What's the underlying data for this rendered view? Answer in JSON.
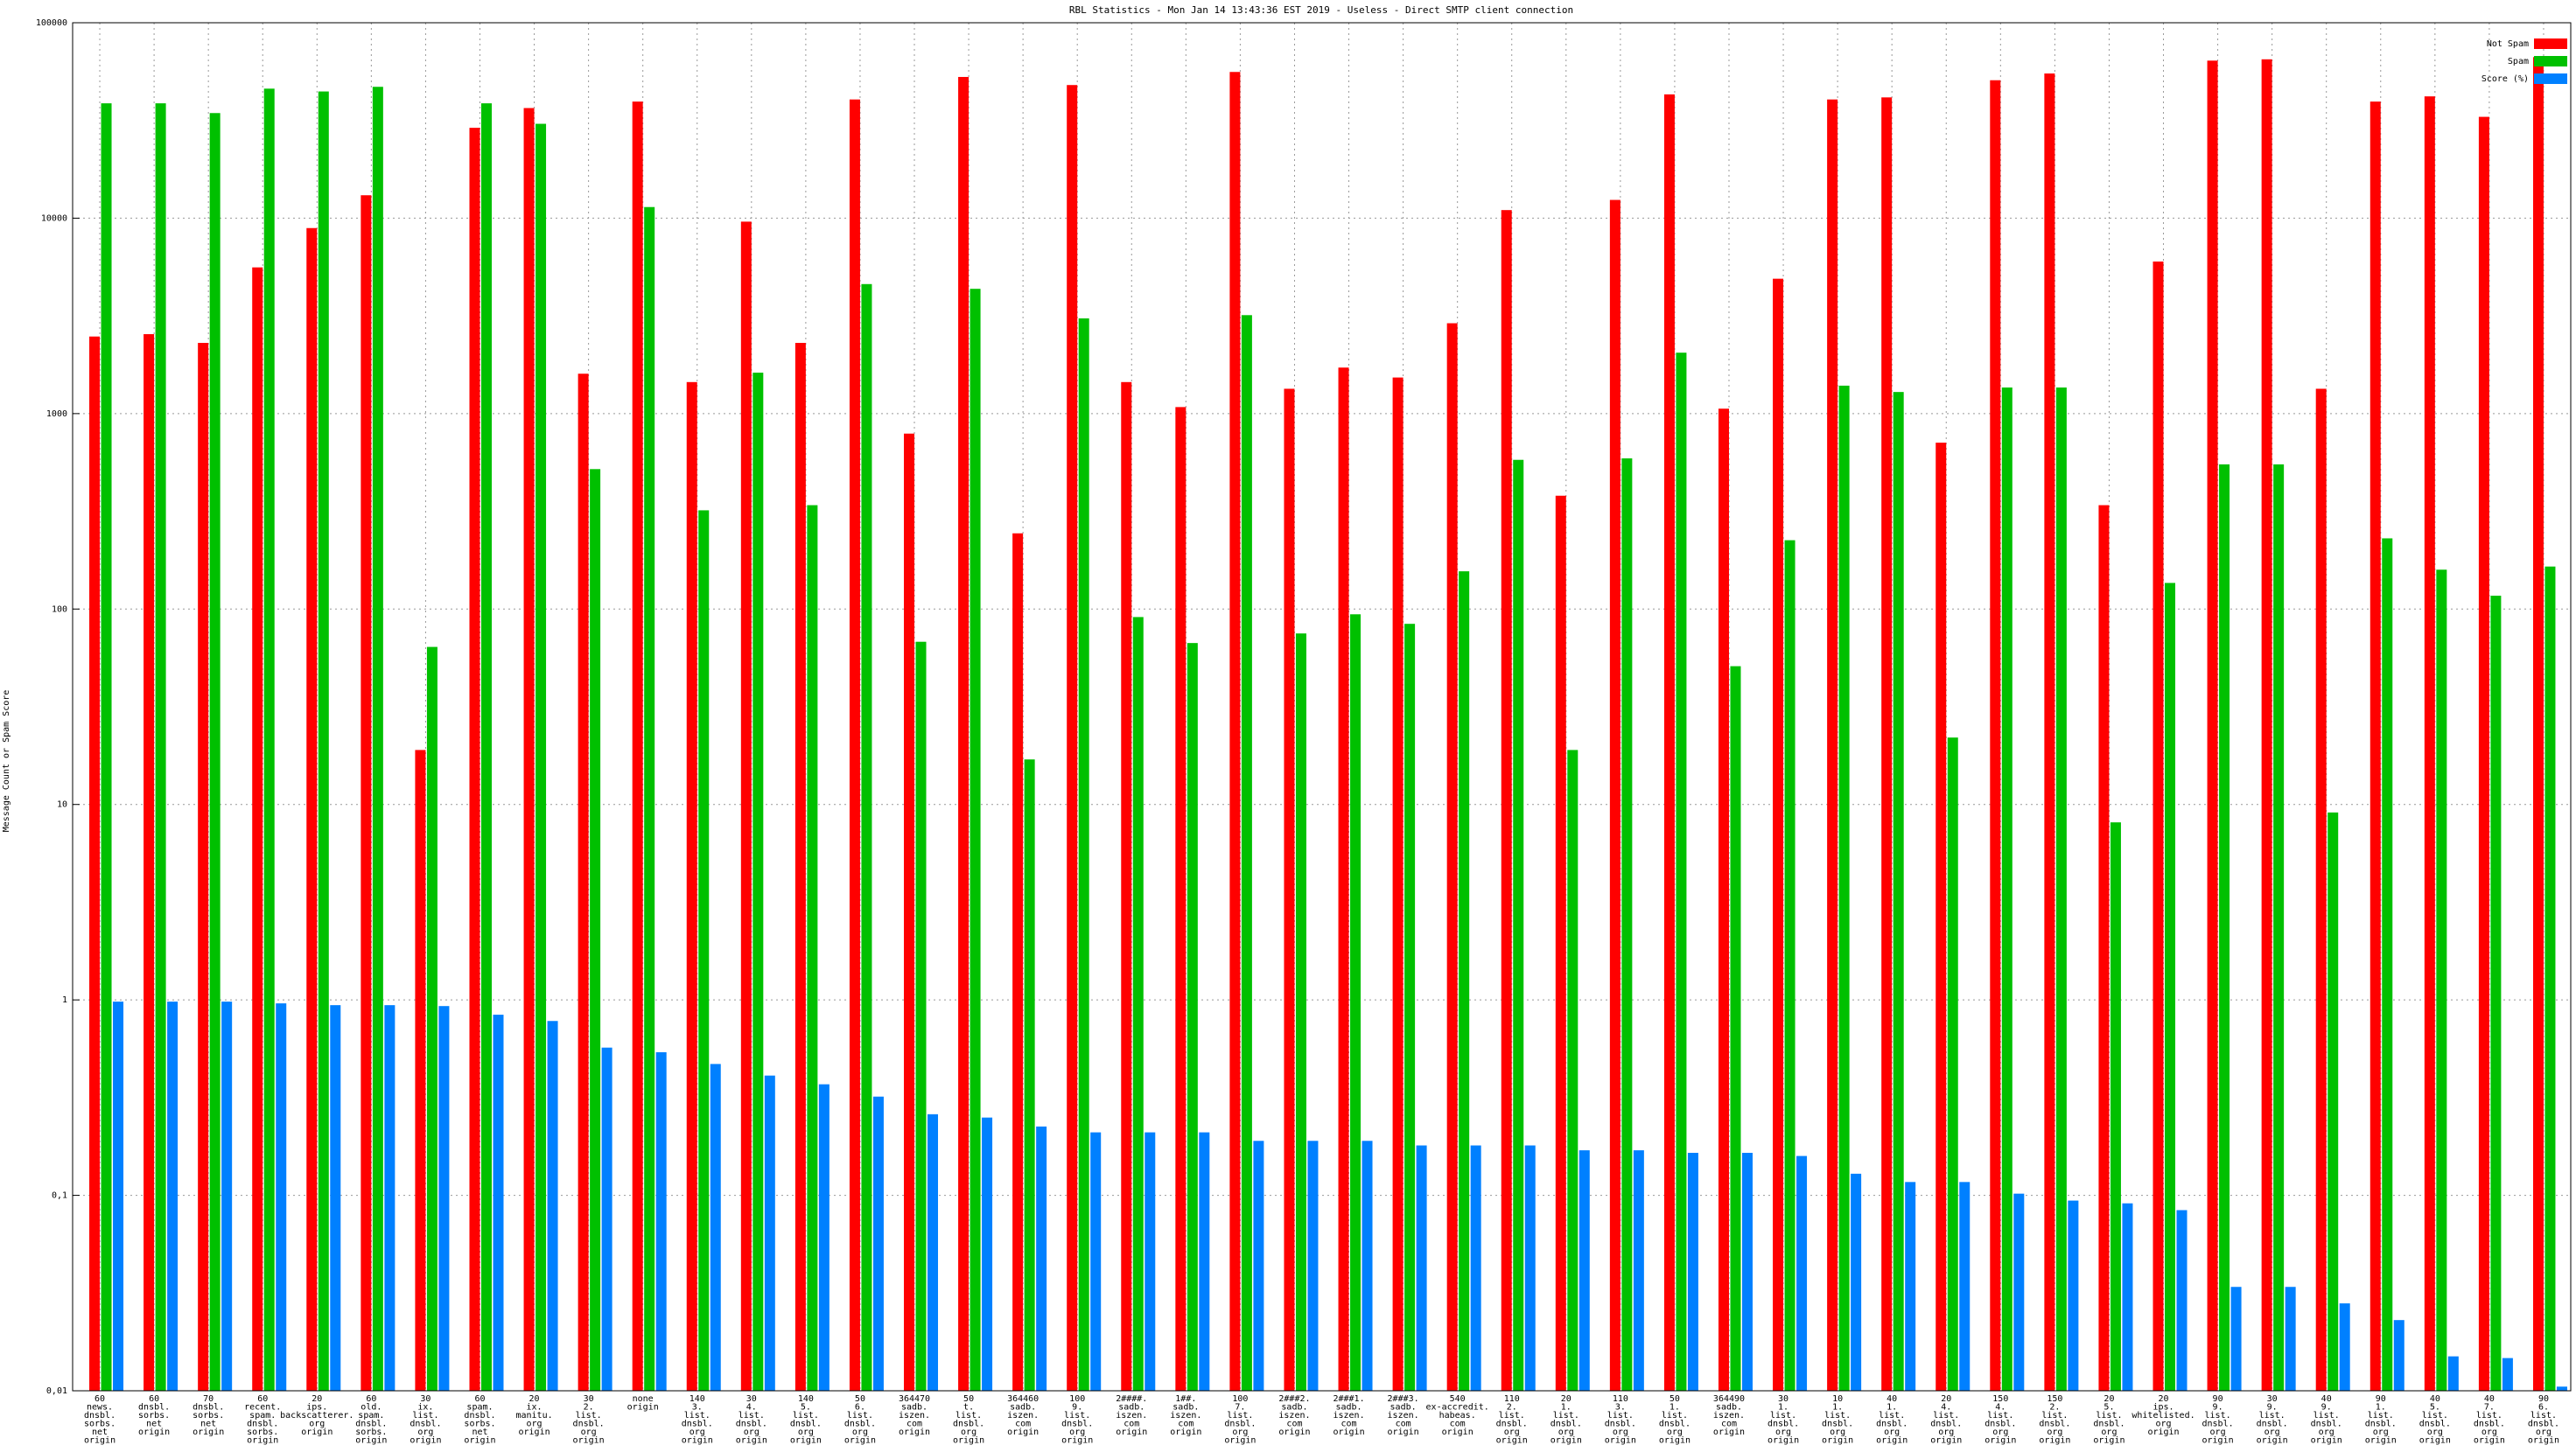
{
  "chart_data": {
    "type": "bar",
    "title": "RBL Statistics - Mon Jan 14 13:43:36 EST 2019 - Useless - Direct SMTP client connection",
    "y_label": "Message Count or Spam Score",
    "log_scale": true,
    "grid": true,
    "legend_position": "top-right",
    "ylim": [
      0.01,
      100000
    ],
    "yticks": [
      {
        "value": 0.01,
        "label": "0,01"
      },
      {
        "value": 0.1,
        "label": "0,1"
      },
      1,
      10,
      100,
      1000,
      10000,
      100000
    ],
    "categories": [
      [
        "60",
        "news.",
        "dnsbl.",
        "sorbs.",
        "net",
        "origin"
      ],
      [
        "60",
        "dnsbl.",
        "sorbs.",
        "net",
        "origin"
      ],
      [
        "70",
        "dnsbl.",
        "sorbs.",
        "net",
        "origin"
      ],
      [
        "60",
        "recent.",
        "spam.",
        "dnsbl.",
        "sorbs.",
        "origin"
      ],
      [
        "20",
        "ips.",
        "backscatterer.",
        "org",
        "origin"
      ],
      [
        "60",
        "old.",
        "spam.",
        "dnsbl.",
        "sorbs.",
        "origin"
      ],
      [
        "30",
        "ix.",
        "list.",
        "dnsbl.",
        "org",
        "origin"
      ],
      [
        "60",
        "spam.",
        "dnsbl.",
        "sorbs.",
        "net",
        "origin"
      ],
      [
        "20",
        "ix.",
        "manitu.",
        "org",
        "origin"
      ],
      [
        "30",
        "2.",
        "list.",
        "dnsbl.",
        "org",
        "origin"
      ],
      [
        "none",
        "origin"
      ],
      [
        "140",
        "3.",
        "list.",
        "dnsbl.",
        "org",
        "origin"
      ],
      [
        "30",
        "4.",
        "list.",
        "dnsbl.",
        "org",
        "origin"
      ],
      [
        "140",
        "5.",
        "list.",
        "dnsbl.",
        "org",
        "origin"
      ],
      [
        "50",
        "6.",
        "list.",
        "dnsbl.",
        "org",
        "origin"
      ],
      [
        "364470",
        "sadb.",
        "iszen.",
        "com",
        "origin"
      ],
      [
        "50",
        "t.",
        "list.",
        "dnsbl.",
        "org",
        "origin"
      ],
      [
        "364460",
        "sadb.",
        "iszen.",
        "com",
        "origin"
      ],
      [
        "100",
        "9.",
        "list.",
        "dnsbl.",
        "org",
        "origin"
      ],
      [
        "2####.",
        "sadb.",
        "iszen.",
        "com",
        "origin"
      ],
      [
        "1##.",
        "sadb.",
        "iszen.",
        "com",
        "origin"
      ],
      [
        "100",
        "7.",
        "list.",
        "dnsbl.",
        "org",
        "origin"
      ],
      [
        "2###2.",
        "sadb.",
        "iszen.",
        "com",
        "origin"
      ],
      [
        "2###1.",
        "sadb.",
        "iszen.",
        "com",
        "origin"
      ],
      [
        "2###3.",
        "sadb.",
        "iszen.",
        "com",
        "origin"
      ],
      [
        "540",
        "ex-accredit.",
        "habeas.",
        "com",
        "origin"
      ],
      [
        "110",
        "2.",
        "list.",
        "dnsbl.",
        "org",
        "origin"
      ],
      [
        "20",
        "1.",
        "list.",
        "dnsbl.",
        "org",
        "origin"
      ],
      [
        "110",
        "3.",
        "list.",
        "dnsbl.",
        "org",
        "origin"
      ],
      [
        "50",
        "1.",
        "list.",
        "dnsbl.",
        "org",
        "origin"
      ],
      [
        "364490",
        "sadb.",
        "iszen.",
        "com",
        "origin"
      ],
      [
        "30",
        "1.",
        "list.",
        "dnsbl.",
        "org",
        "origin"
      ],
      [
        "10",
        "1.",
        "list.",
        "dnsbl.",
        "org",
        "origin"
      ],
      [
        "40",
        "1.",
        "list.",
        "dnsbl.",
        "org",
        "origin"
      ],
      [
        "20",
        "4.",
        "list.",
        "dnsbl.",
        "org",
        "origin"
      ],
      [
        "150",
        "4.",
        "list.",
        "dnsbl.",
        "org",
        "origin"
      ],
      [
        "150",
        "2.",
        "list.",
        "dnsbl.",
        "org",
        "origin"
      ],
      [
        "20",
        "5.",
        "list.",
        "dnsbl.",
        "org",
        "origin"
      ],
      [
        "20",
        "ips.",
        "whitelisted.",
        "org",
        "origin"
      ],
      [
        "90",
        "9.",
        "list.",
        "dnsbl.",
        "org",
        "origin"
      ],
      [
        "30",
        "9.",
        "list.",
        "dnsbl.",
        "org",
        "origin"
      ],
      [
        "40",
        "9.",
        "list.",
        "dnsbl.",
        "org",
        "origin"
      ],
      [
        "90",
        "1.",
        "list.",
        "dnsbl.",
        "org",
        "origin"
      ],
      [
        "40",
        "5.",
        "list.",
        "dnsbl.",
        "org",
        "origin"
      ],
      [
        "40",
        "7.",
        "list.",
        "dnsbl.",
        "org",
        "origin"
      ],
      [
        "90",
        "6.",
        "list.",
        "dnsbl.",
        "org",
        "origin"
      ]
    ],
    "series": [
      {
        "name": "Not Spam",
        "color": "#ff0000",
        "values": [
          2480,
          2550,
          2300,
          5600,
          8900,
          13100,
          19,
          29000,
          36600,
          1600,
          39500,
          1450,
          9600,
          2300,
          40500,
          790,
          52800,
          244,
          48000,
          1450,
          1080,
          56000,
          1340,
          1720,
          1530,
          2900,
          11000,
          380,
          12400,
          43000,
          1060,
          4900,
          40500,
          41500,
          710,
          50800,
          55000,
          340,
          6000,
          64000,
          65000,
          1340,
          39500,
          42000,
          33000,
          66700
        ]
      },
      {
        "name": "Spam",
        "color": "#00c000",
        "values": [
          38700,
          38700,
          34500,
          46000,
          44500,
          47000,
          64,
          38700,
          30400,
          520,
          11400,
          320,
          1620,
          340,
          4600,
          68,
          4350,
          17,
          3070,
          91,
          67,
          3190,
          75,
          94,
          84,
          156,
          580,
          19,
          590,
          2050,
          51,
          225,
          1390,
          1290,
          22,
          1360,
          1360,
          8.1,
          136,
          550,
          550,
          9.1,
          230,
          159,
          117,
          165
        ]
      },
      {
        "name": "Score (%)",
        "color": "#0080ff",
        "values": [
          0.98,
          0.98,
          0.98,
          0.96,
          0.94,
          0.94,
          0.93,
          0.84,
          0.78,
          0.57,
          0.54,
          0.47,
          0.41,
          0.37,
          0.32,
          0.26,
          0.25,
          0.225,
          0.21,
          0.21,
          0.21,
          0.19,
          0.19,
          0.19,
          0.18,
          0.18,
          0.18,
          0.17,
          0.17,
          0.165,
          0.165,
          0.159,
          0.129,
          0.117,
          0.117,
          0.102,
          0.094,
          0.091,
          0.084,
          0.034,
          0.034,
          0.028,
          0.023,
          0.015,
          0.0147,
          0.0105
        ]
      }
    ]
  }
}
